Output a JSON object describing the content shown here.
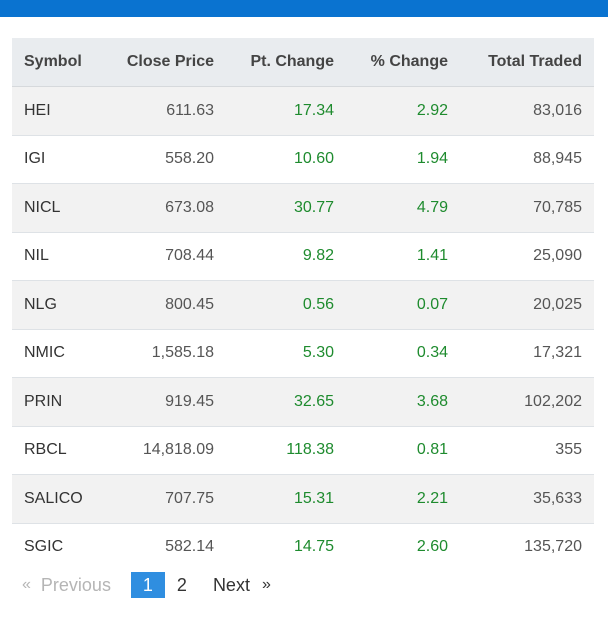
{
  "colors": {
    "topbar": "#0a73d0",
    "header_bg": "#e9ecef",
    "row_alt_bg": "#f2f2f2",
    "positive": "#1e8b2e",
    "active_page": "#2f8ee0"
  },
  "table": {
    "headers": {
      "symbol": "Symbol",
      "close_price": "Close Price",
      "pt_change": "Pt. Change",
      "pct_change": "% Change",
      "total_traded": "Total Traded"
    },
    "rows": [
      {
        "symbol": "HEI",
        "close_price": "611.63",
        "pt_change": "17.34",
        "pct_change": "2.92",
        "total_traded": "83,016"
      },
      {
        "symbol": "IGI",
        "close_price": "558.20",
        "pt_change": "10.60",
        "pct_change": "1.94",
        "total_traded": "88,945"
      },
      {
        "symbol": "NICL",
        "close_price": "673.08",
        "pt_change": "30.77",
        "pct_change": "4.79",
        "total_traded": "70,785"
      },
      {
        "symbol": "NIL",
        "close_price": "708.44",
        "pt_change": "9.82",
        "pct_change": "1.41",
        "total_traded": "25,090"
      },
      {
        "symbol": "NLG",
        "close_price": "800.45",
        "pt_change": "0.56",
        "pct_change": "0.07",
        "total_traded": "20,025"
      },
      {
        "symbol": "NMIC",
        "close_price": "1,585.18",
        "pt_change": "5.30",
        "pct_change": "0.34",
        "total_traded": "17,321"
      },
      {
        "symbol": "PRIN",
        "close_price": "919.45",
        "pt_change": "32.65",
        "pct_change": "3.68",
        "total_traded": "102,202"
      },
      {
        "symbol": "RBCL",
        "close_price": "14,818.09",
        "pt_change": "118.38",
        "pct_change": "0.81",
        "total_traded": "355"
      },
      {
        "symbol": "SALICO",
        "close_price": "707.75",
        "pt_change": "15.31",
        "pct_change": "2.21",
        "total_traded": "35,633"
      },
      {
        "symbol": "SGIC",
        "close_price": "582.14",
        "pt_change": "14.75",
        "pct_change": "2.60",
        "total_traded": "135,720"
      }
    ]
  },
  "pagination": {
    "prev_arrow": "«",
    "prev_label": "Previous",
    "pages": [
      "1",
      "2"
    ],
    "current_page": "1",
    "next_label": "Next",
    "next_arrow": "»"
  }
}
